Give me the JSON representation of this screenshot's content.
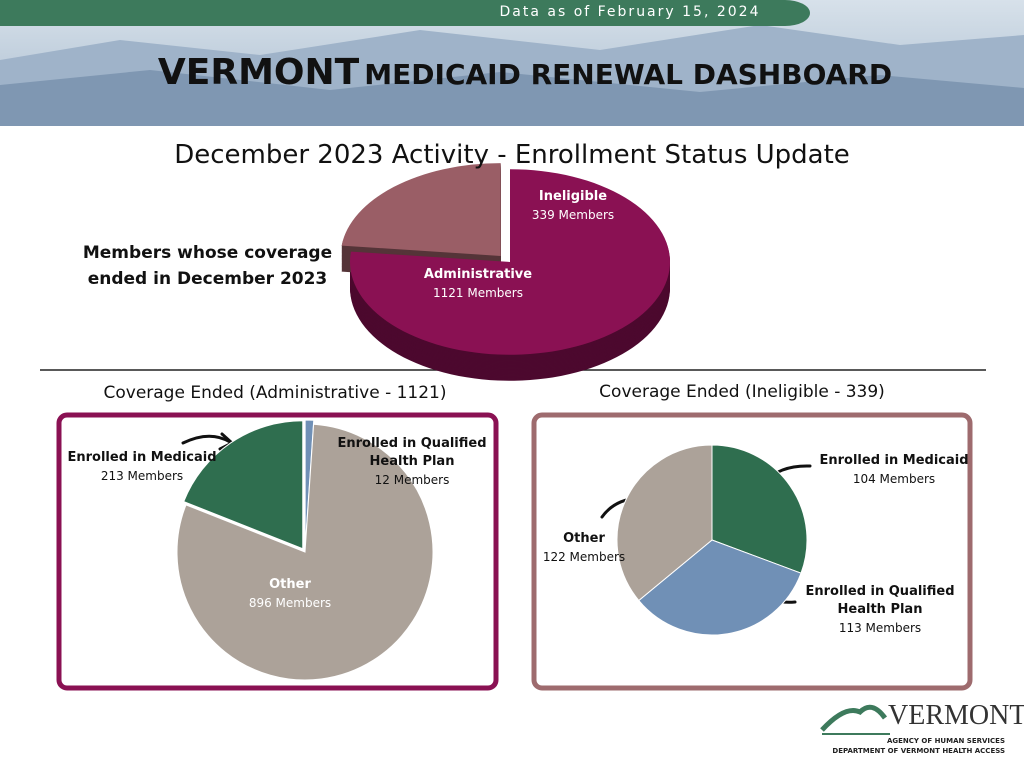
{
  "header": {
    "date_note": "Data as of February 15, 2024",
    "title_bold": "VERMONT",
    "title_rest": "MEDICAID RENEWAL DASHBOARD"
  },
  "chart_data": [
    {
      "type": "pie3d",
      "title": "December 2023 Activity - Enrollment Status Update",
      "side_note": "Members whose coverage ended in December 2023",
      "categories": [
        "Administrative",
        "Ineligible"
      ],
      "values": [
        1121,
        339
      ],
      "value_labels": [
        "1121 Members",
        "339 Members"
      ],
      "colors": [
        "#8a1153",
        "#9a5e66"
      ]
    },
    {
      "type": "pie",
      "title": "Coverage Ended (Administrative - 1121)",
      "categories": [
        "Enrolled in Qualified Health Plan",
        "Other",
        "Enrolled in Medicaid"
      ],
      "values": [
        12,
        896,
        213
      ],
      "value_labels": [
        "12 Members",
        "896 Members",
        "213 Members"
      ],
      "colors": [
        "#7090b6",
        "#aca299",
        "#2f6e4f"
      ]
    },
    {
      "type": "pie",
      "title": "Coverage Ended (Ineligible - 339)",
      "categories": [
        "Enrolled in Medicaid",
        "Enrolled in Qualified Health Plan",
        "Other"
      ],
      "values": [
        104,
        113,
        122
      ],
      "value_labels": [
        "104 Members",
        "113 Members",
        "122 Members"
      ],
      "colors": [
        "#2f6e4f",
        "#7090b6",
        "#aca299"
      ]
    }
  ],
  "logo": {
    "name": "VERMONT",
    "line1": "AGENCY OF HUMAN SERVICES",
    "line2": "DEPARTMENT OF VERMONT HEALTH ACCESS"
  }
}
